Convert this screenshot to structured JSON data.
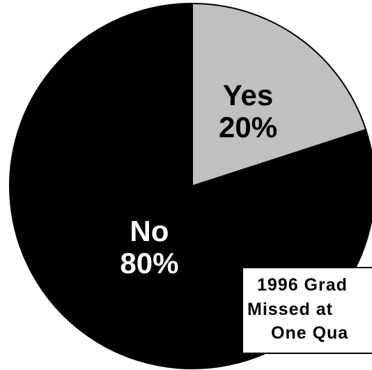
{
  "chart_data": {
    "type": "pie",
    "slices": [
      {
        "label": "Yes",
        "value": 20,
        "value_label": "20%",
        "color": "#c0c0c0",
        "text_color": "#000000"
      },
      {
        "label": "No",
        "value": 80,
        "value_label": "80%",
        "color": "#000000",
        "text_color": "#ffffff"
      }
    ],
    "start_angle_deg": 0,
    "direction": "clockwise",
    "title_lines": [
      "1996 Grad",
      "Missed at",
      "One Qua"
    ]
  }
}
